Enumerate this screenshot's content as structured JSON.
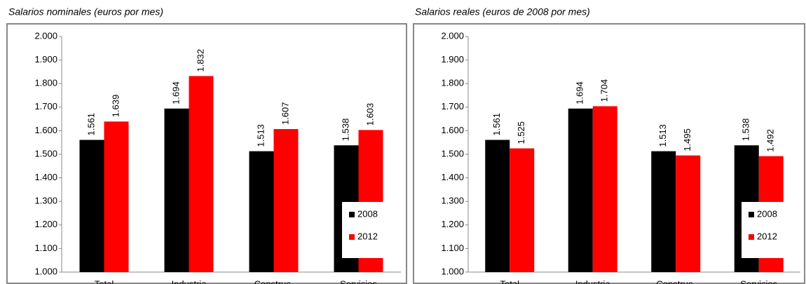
{
  "chart_data": [
    {
      "type": "bar",
      "title": "Salarios nominales (euros por mes)",
      "categories": [
        "Total",
        "Industria",
        "Construc.",
        "Servicios"
      ],
      "series": [
        {
          "name": "2008",
          "color": "#000000",
          "values": [
            1561,
            1694,
            1513,
            1538
          ],
          "value_labels": [
            "1.561",
            "1.694",
            "1.513",
            "1.538"
          ]
        },
        {
          "name": "2012",
          "color": "#ff0000",
          "values": [
            1639,
            1832,
            1607,
            1603
          ],
          "value_labels": [
            "1.639",
            "1.832",
            "1.607",
            "1.603"
          ]
        }
      ],
      "ylim": [
        1000,
        2000
      ],
      "yticks": [
        {
          "value": 1000,
          "label": "1.000"
        },
        {
          "value": 1100,
          "label": "1.100"
        },
        {
          "value": 1200,
          "label": "1.200"
        },
        {
          "value": 1300,
          "label": "1.300"
        },
        {
          "value": 1400,
          "label": "1.400"
        },
        {
          "value": 1500,
          "label": "1.500"
        },
        {
          "value": 1600,
          "label": "1.600"
        },
        {
          "value": 1700,
          "label": "1.700"
        },
        {
          "value": 1800,
          "label": "1.800"
        },
        {
          "value": 1900,
          "label": "1.900"
        },
        {
          "value": 2000,
          "label": "2.000"
        }
      ],
      "legend": "lower right"
    },
    {
      "type": "bar",
      "title": "Salarios reales (euros de 2008 por mes)",
      "categories": [
        "Total",
        "Industria",
        "Construc.",
        "Servicios"
      ],
      "series": [
        {
          "name": "2008",
          "color": "#000000",
          "values": [
            1561,
            1694,
            1513,
            1538
          ],
          "value_labels": [
            "1.561",
            "1.694",
            "1.513",
            "1.538"
          ]
        },
        {
          "name": "2012",
          "color": "#ff0000",
          "values": [
            1525,
            1704,
            1495,
            1492
          ],
          "value_labels": [
            "1.525",
            "1.704",
            "1.495",
            "1.492"
          ]
        }
      ],
      "ylim": [
        1000,
        2000
      ],
      "yticks": [
        {
          "value": 1000,
          "label": "1.000"
        },
        {
          "value": 1100,
          "label": "1.100"
        },
        {
          "value": 1200,
          "label": "1.200"
        },
        {
          "value": 1300,
          "label": "1.300"
        },
        {
          "value": 1400,
          "label": "1.400"
        },
        {
          "value": 1500,
          "label": "1.500"
        },
        {
          "value": 1600,
          "label": "1.600"
        },
        {
          "value": 1700,
          "label": "1.700"
        },
        {
          "value": 1800,
          "label": "1.800"
        },
        {
          "value": 1900,
          "label": "1.900"
        },
        {
          "value": 2000,
          "label": "2.000"
        }
      ],
      "legend": "lower right"
    }
  ]
}
